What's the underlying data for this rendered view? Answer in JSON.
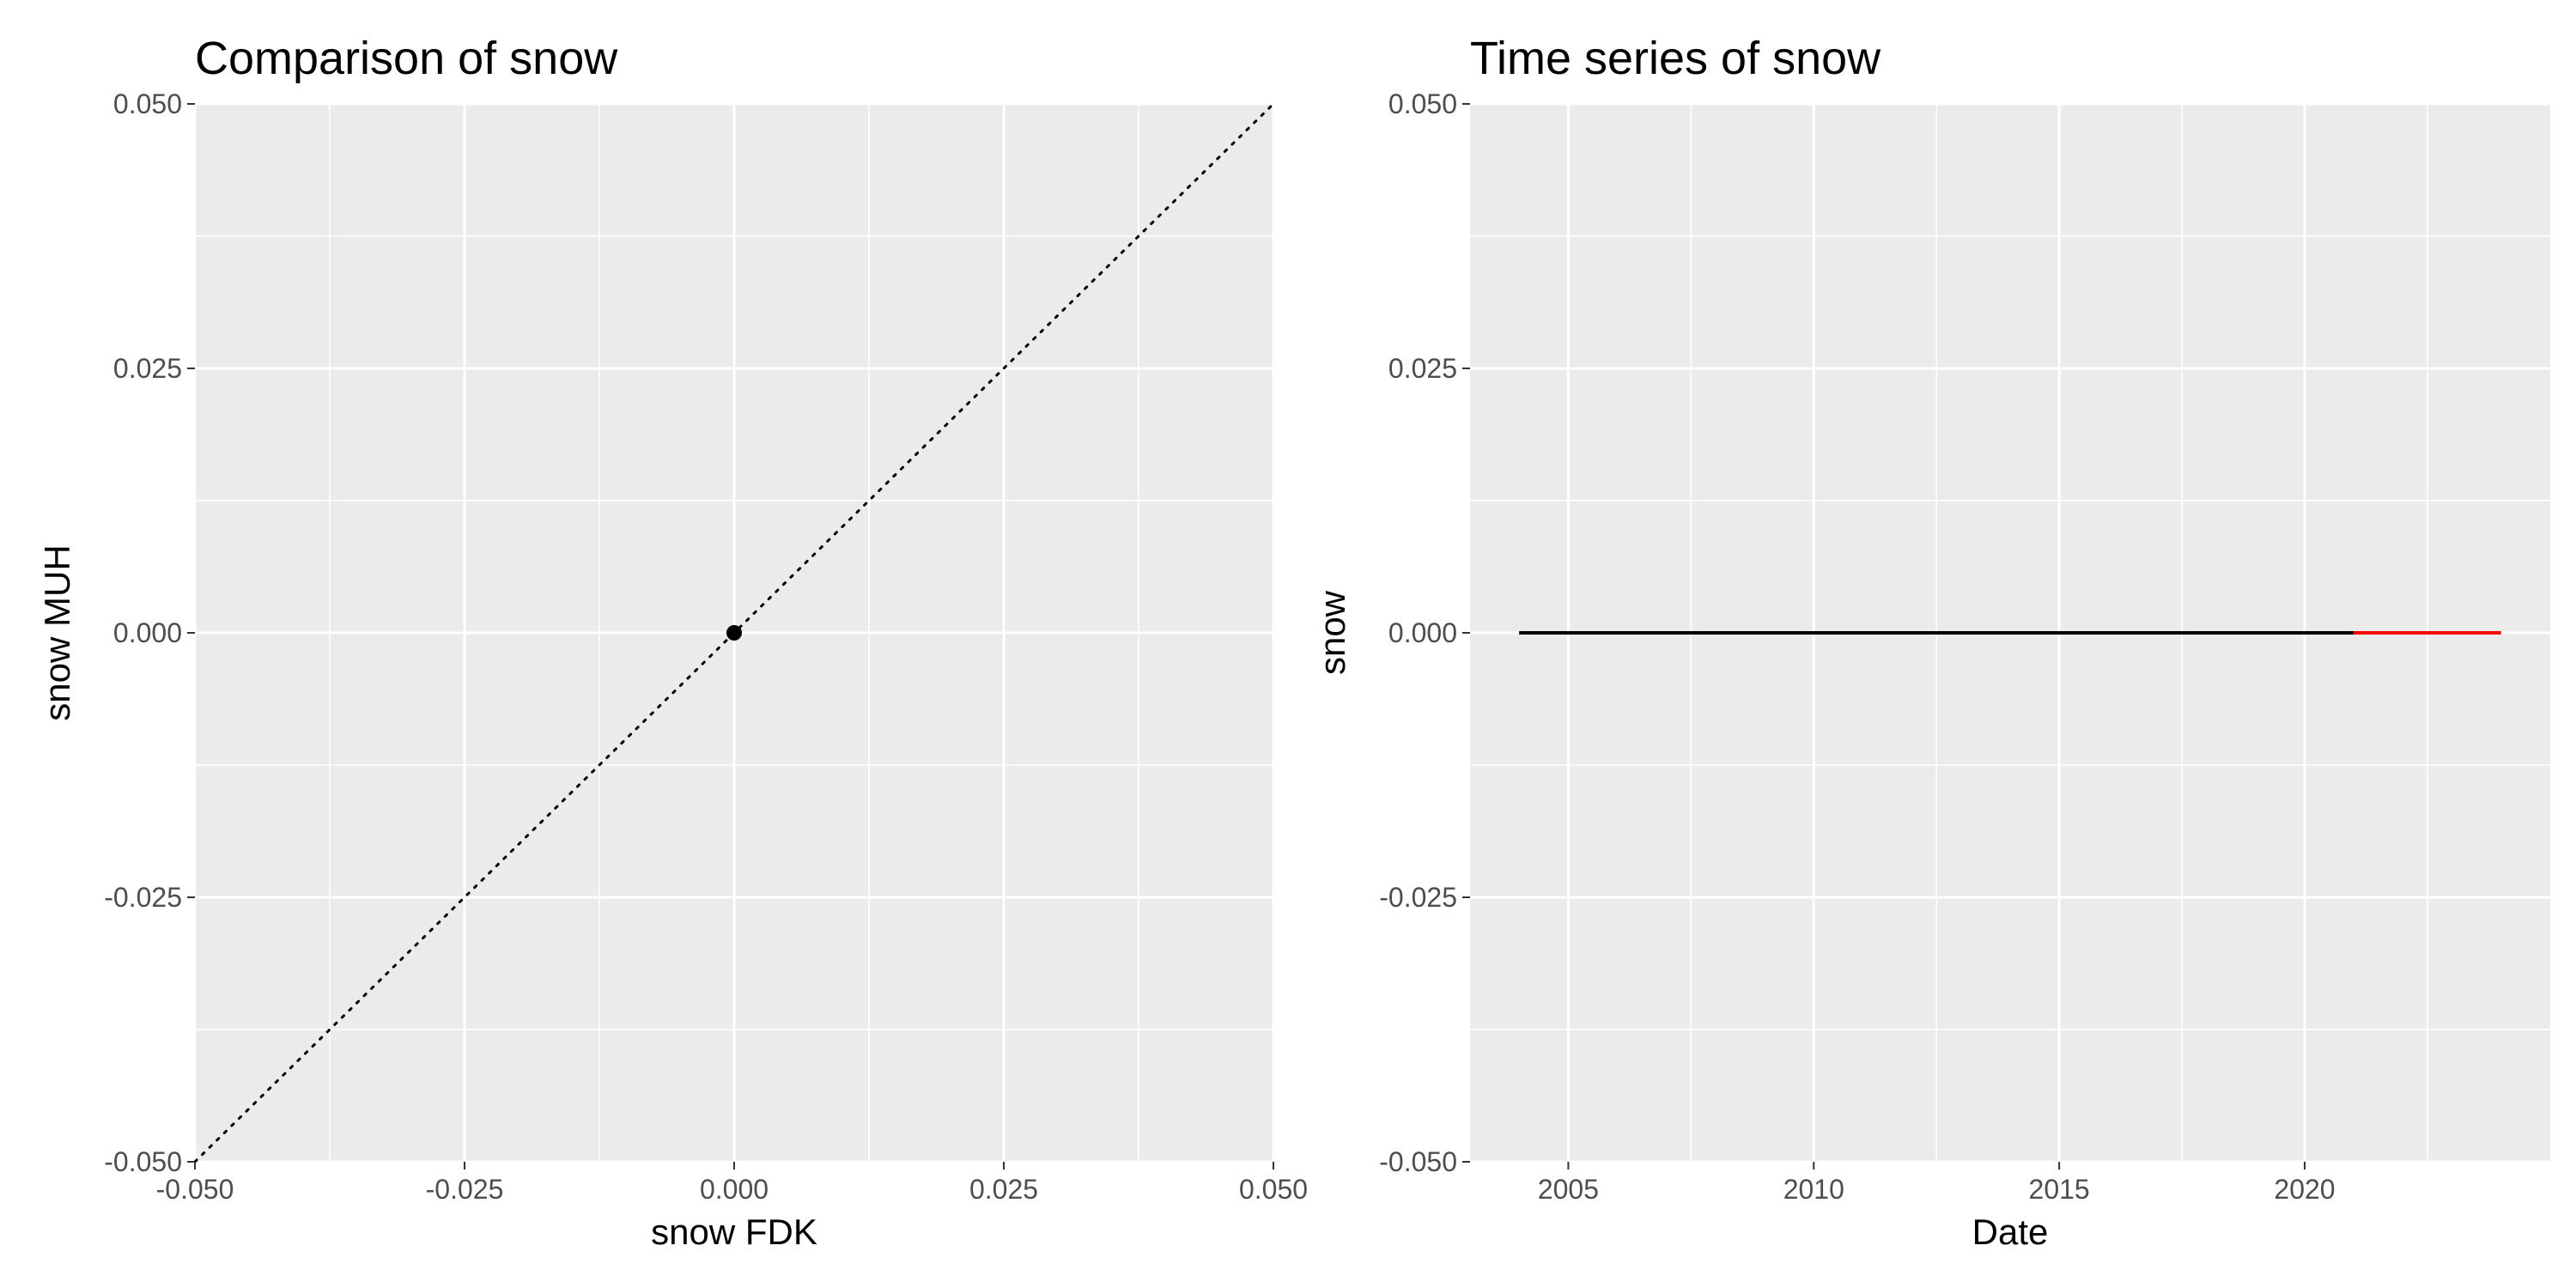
{
  "chart_data": [
    {
      "type": "scatter",
      "title": "Comparison of snow",
      "xlabel": "snow FDK",
      "ylabel": "snow MUH",
      "xlim": [
        -0.05,
        0.05
      ],
      "ylim": [
        -0.05,
        0.05
      ],
      "x_ticks": [
        -0.05,
        -0.025,
        0.0,
        0.025,
        0.05
      ],
      "x_tick_labels": [
        "-0.050",
        "-0.025",
        "0.000",
        "0.025",
        "0.050"
      ],
      "y_ticks": [
        -0.05,
        -0.025,
        0.0,
        0.025,
        0.05
      ],
      "y_tick_labels": [
        "-0.050",
        "-0.025",
        "0.000",
        "0.025",
        "0.050"
      ],
      "points": [
        {
          "x": 0.0,
          "y": 0.0
        }
      ],
      "reference_line": {
        "type": "identity",
        "style": "dotted",
        "from": [
          -0.05,
          -0.05
        ],
        "to": [
          0.05,
          0.05
        ]
      },
      "grid": true,
      "panel_background": "#ebebeb"
    },
    {
      "type": "line",
      "title": "Time series of snow",
      "xlabel": "Date",
      "ylabel": "snow",
      "xlim": [
        "2003-01-01",
        "2025-01-01"
      ],
      "ylim": [
        -0.05,
        0.05
      ],
      "x_ticks": [
        "2005-01-01",
        "2010-01-01",
        "2015-01-01",
        "2020-01-01"
      ],
      "x_tick_labels": [
        "2005",
        "2010",
        "2015",
        "2020"
      ],
      "y_ticks": [
        -0.05,
        -0.025,
        0.0,
        0.025,
        0.05
      ],
      "y_tick_labels": [
        "-0.050",
        "-0.025",
        "0.000",
        "0.025",
        "0.050"
      ],
      "series": [
        {
          "color": "#000000",
          "x": [
            "2004-01-01",
            "2021-01-01"
          ],
          "y": [
            0.0,
            0.0
          ]
        },
        {
          "color": "#ff0000",
          "x": [
            "2021-01-01",
            "2024-01-01"
          ],
          "y": [
            0.0,
            0.0
          ]
        }
      ],
      "grid": true,
      "panel_background": "#ebebeb"
    }
  ]
}
